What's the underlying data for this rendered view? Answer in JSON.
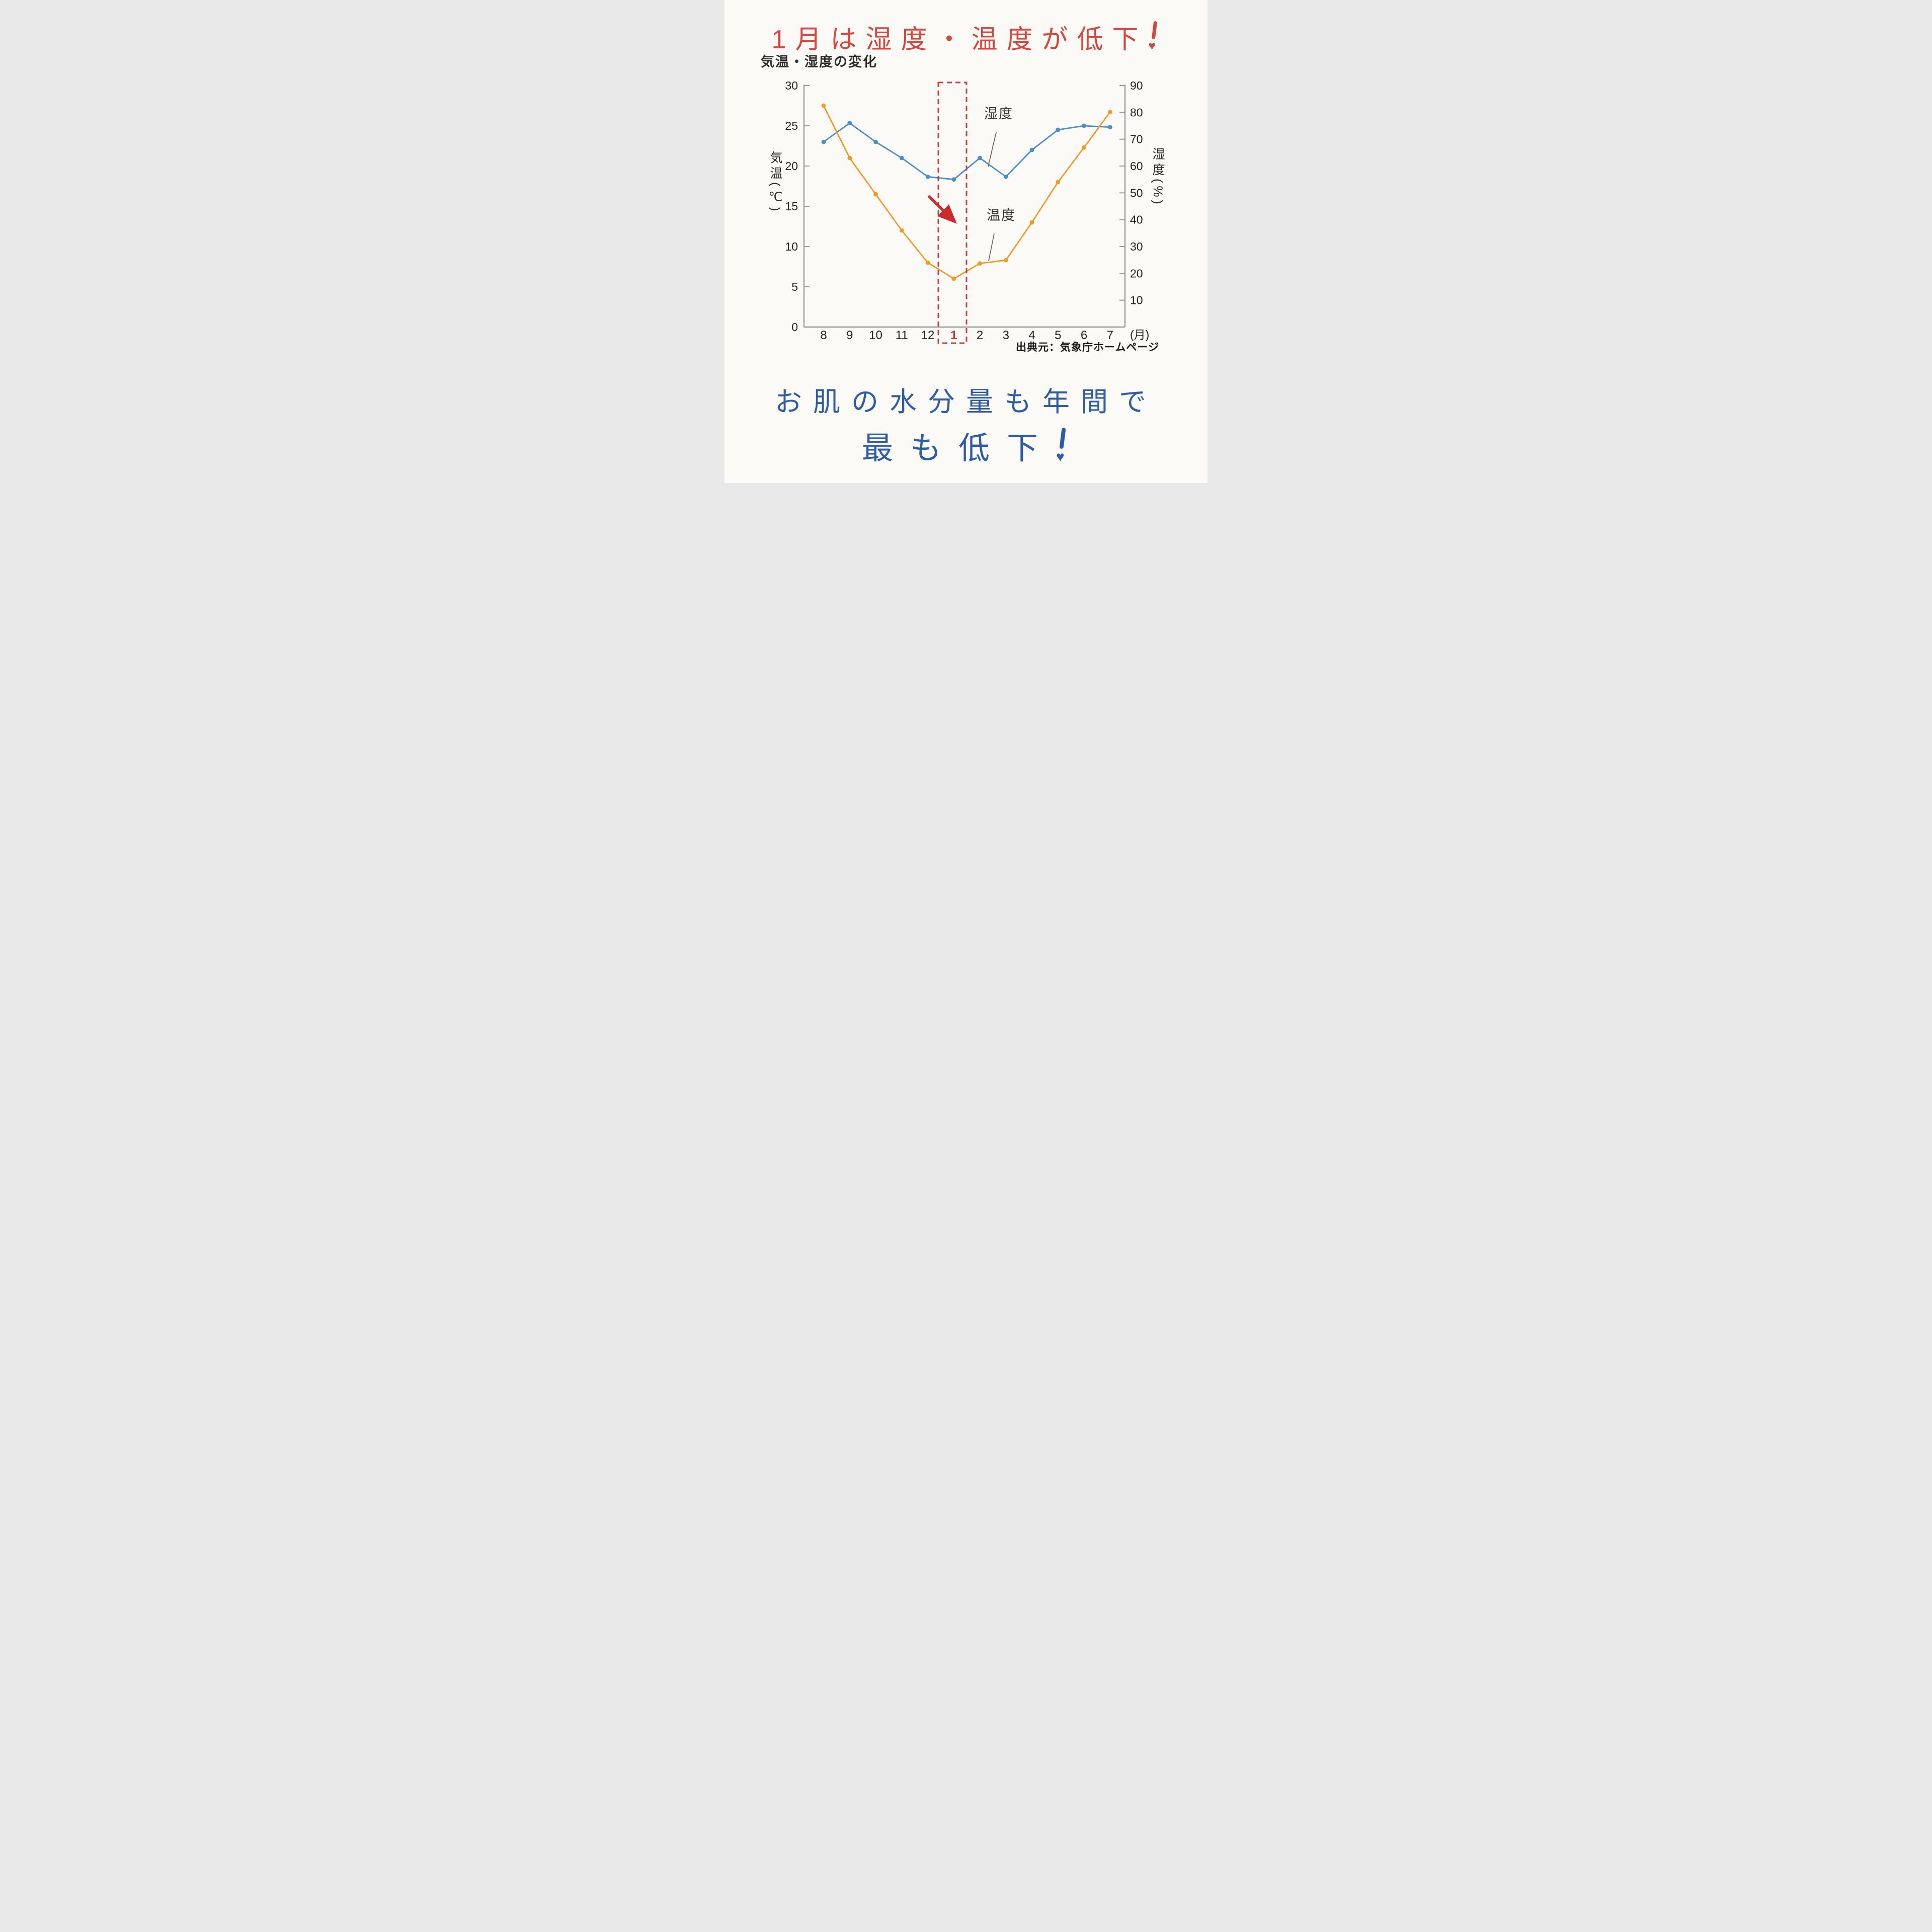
{
  "headline": {
    "text": "1月は湿度・温度が低下",
    "exclamation": "♥",
    "color": "#d6463e"
  },
  "chart": {
    "title": "気温・湿度の変化",
    "left_axis": {
      "label": "気温(℃)",
      "ticks": [
        "0",
        "5",
        "10",
        "15",
        "20",
        "25",
        "30"
      ]
    },
    "right_axis": {
      "label": "湿度(%)",
      "ticks": [
        "10",
        "20",
        "30",
        "40",
        "50",
        "60",
        "70",
        "80",
        "90"
      ]
    },
    "x_axis": {
      "labels": [
        "8",
        "9",
        "10",
        "11",
        "12",
        "1",
        "2",
        "3",
        "4",
        "5",
        "6",
        "7"
      ],
      "unit": "(月)",
      "highlight": "1"
    },
    "series_labels": {
      "humidity": "湿度",
      "temperature": "温度"
    },
    "source": "出典元：気象庁ホームページ",
    "colors": {
      "humidity": "#4b8fc8",
      "temperature": "#ef9b28",
      "highlight_red": "#cc3333",
      "axis_gray": "#9a9a9a"
    }
  },
  "chart_data": {
    "type": "line",
    "title": "気温・湿度の変化",
    "x": [
      "8",
      "9",
      "10",
      "11",
      "12",
      "1",
      "2",
      "3",
      "4",
      "5",
      "6",
      "7"
    ],
    "xlabel": "月",
    "series": [
      {
        "key": "humidity",
        "name": "湿度",
        "axis": "right",
        "unit": "%",
        "color": "#4b8fc8",
        "values": [
          69,
          76,
          69,
          63,
          56,
          55,
          63,
          56,
          66,
          73.5,
          75,
          74.5
        ]
      },
      {
        "key": "temperature",
        "name": "温度",
        "axis": "left",
        "unit": "℃",
        "color": "#ef9b28",
        "values": [
          27.5,
          21,
          16.5,
          12,
          8,
          6,
          7.9,
          8.3,
          13,
          18,
          22.3,
          26.7
        ]
      }
    ],
    "left_ylim": [
      0,
      30
    ],
    "right_ylim": [
      0,
      90
    ],
    "legend_position": "inline-callouts",
    "grid": false,
    "annotations": {
      "highlight_month": "1",
      "highlight_box": "red-dashed",
      "arrow": "red down-right toward January"
    }
  },
  "footer": {
    "line1": "お肌の水分量も年間で",
    "line2_text": "最も低下",
    "exclamation": "♥",
    "color": "#2e5da6"
  }
}
